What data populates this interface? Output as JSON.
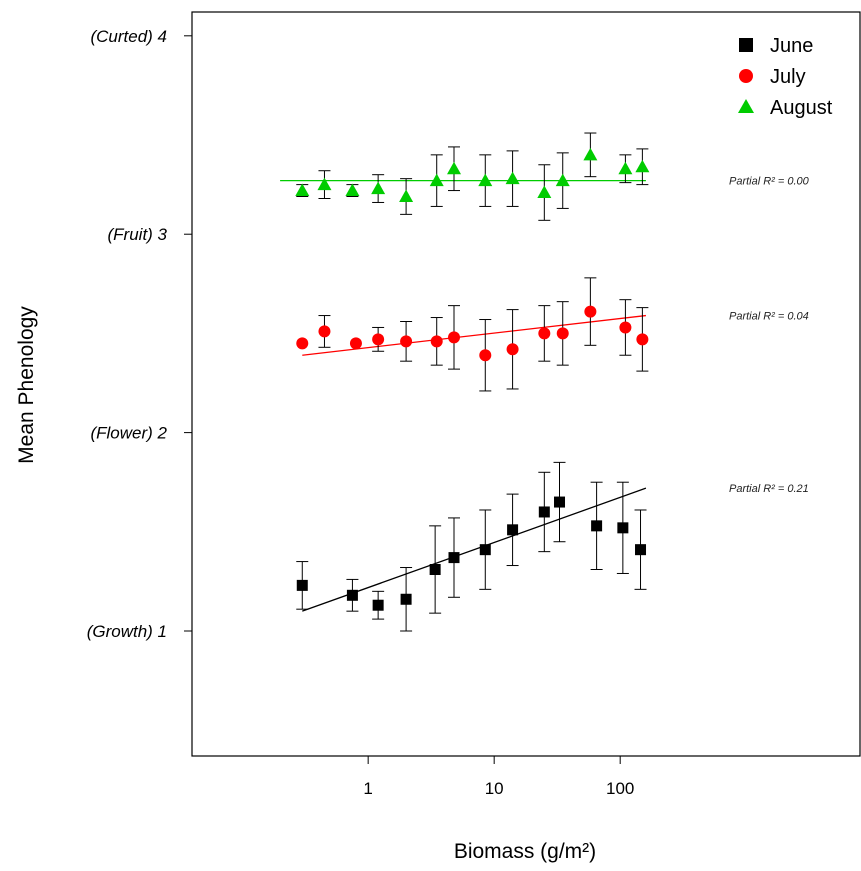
{
  "chart_data": {
    "type": "scatter",
    "xlabel": "Biomass  (g/m²)",
    "ylabel": "Mean Phenology",
    "x_scale": "log",
    "xlim": [
      0.04,
      8000
    ],
    "ylim": [
      4.12,
      0.37
    ],
    "x_ticks": [
      {
        "value": 1,
        "label": "1"
      },
      {
        "value": 10,
        "label": "10"
      },
      {
        "value": 100,
        "label": "100"
      }
    ],
    "y_ticks": [
      {
        "value": 1,
        "label": "(Growth) 1"
      },
      {
        "value": 2,
        "label": "(Flower) 2"
      },
      {
        "value": 3,
        "label": "(Fruit) 3"
      },
      {
        "value": 4,
        "label": "(Curted) 4"
      }
    ],
    "legend_position": "top-right",
    "series": [
      {
        "name": "June",
        "color": "#000000",
        "marker": "square",
        "points": [
          {
            "x": 0.3,
            "y": 1.23,
            "err": 0.12
          },
          {
            "x": 0.75,
            "y": 1.18,
            "err": 0.08
          },
          {
            "x": 1.2,
            "y": 1.13,
            "err": 0.07
          },
          {
            "x": 2.0,
            "y": 1.16,
            "err": 0.16
          },
          {
            "x": 3.4,
            "y": 1.31,
            "err": 0.22
          },
          {
            "x": 4.8,
            "y": 1.37,
            "err": 0.2
          },
          {
            "x": 8.5,
            "y": 1.41,
            "err": 0.2
          },
          {
            "x": 14,
            "y": 1.51,
            "err": 0.18
          },
          {
            "x": 25,
            "y": 1.6,
            "err": 0.2
          },
          {
            "x": 33,
            "y": 1.65,
            "err": 0.2
          },
          {
            "x": 65,
            "y": 1.53,
            "err": 0.22
          },
          {
            "x": 105,
            "y": 1.52,
            "err": 0.23
          },
          {
            "x": 145,
            "y": 1.41,
            "err": 0.2
          }
        ],
        "fit": {
          "x": [
            0.3,
            160
          ],
          "y": [
            1.1,
            1.72
          ],
          "label": "Partial R² = 0.21"
        }
      },
      {
        "name": "July",
        "color": "#ff0000",
        "marker": "circle",
        "points": [
          {
            "x": 0.3,
            "y": 2.45,
            "err": 0.0
          },
          {
            "x": 0.45,
            "y": 2.51,
            "err": 0.08
          },
          {
            "x": 0.8,
            "y": 2.45,
            "err": 0.0
          },
          {
            "x": 1.2,
            "y": 2.47,
            "err": 0.06
          },
          {
            "x": 2.0,
            "y": 2.46,
            "err": 0.1
          },
          {
            "x": 3.5,
            "y": 2.46,
            "err": 0.12
          },
          {
            "x": 4.8,
            "y": 2.48,
            "err": 0.16
          },
          {
            "x": 8.5,
            "y": 2.39,
            "err": 0.18
          },
          {
            "x": 14,
            "y": 2.42,
            "err": 0.2
          },
          {
            "x": 25,
            "y": 2.5,
            "err": 0.14
          },
          {
            "x": 35,
            "y": 2.5,
            "err": 0.16
          },
          {
            "x": 58,
            "y": 2.61,
            "err": 0.17
          },
          {
            "x": 110,
            "y": 2.53,
            "err": 0.14
          },
          {
            "x": 150,
            "y": 2.47,
            "err": 0.16
          }
        ],
        "fit": {
          "x": [
            0.3,
            160
          ],
          "y": [
            2.39,
            2.59
          ],
          "label": "Partial R² = 0.04"
        }
      },
      {
        "name": "August",
        "color": "#00cc00",
        "marker": "triangle",
        "points": [
          {
            "x": 0.3,
            "y": 3.22,
            "err": 0.03
          },
          {
            "x": 0.45,
            "y": 3.25,
            "err": 0.07
          },
          {
            "x": 0.75,
            "y": 3.22,
            "err": 0.03
          },
          {
            "x": 1.2,
            "y": 3.23,
            "err": 0.07
          },
          {
            "x": 2.0,
            "y": 3.19,
            "err": 0.09
          },
          {
            "x": 3.5,
            "y": 3.27,
            "err": 0.13
          },
          {
            "x": 4.8,
            "y": 3.33,
            "err": 0.11
          },
          {
            "x": 8.5,
            "y": 3.27,
            "err": 0.13
          },
          {
            "x": 14,
            "y": 3.28,
            "err": 0.14
          },
          {
            "x": 25,
            "y": 3.21,
            "err": 0.14
          },
          {
            "x": 35,
            "y": 3.27,
            "err": 0.14
          },
          {
            "x": 58,
            "y": 3.4,
            "err": 0.11
          },
          {
            "x": 110,
            "y": 3.33,
            "err": 0.07
          },
          {
            "x": 150,
            "y": 3.34,
            "err": 0.09
          }
        ],
        "fit": {
          "x": [
            0.2,
            160
          ],
          "y": [
            3.27,
            3.27
          ],
          "label": "Partial R² = 0.00"
        }
      }
    ]
  }
}
